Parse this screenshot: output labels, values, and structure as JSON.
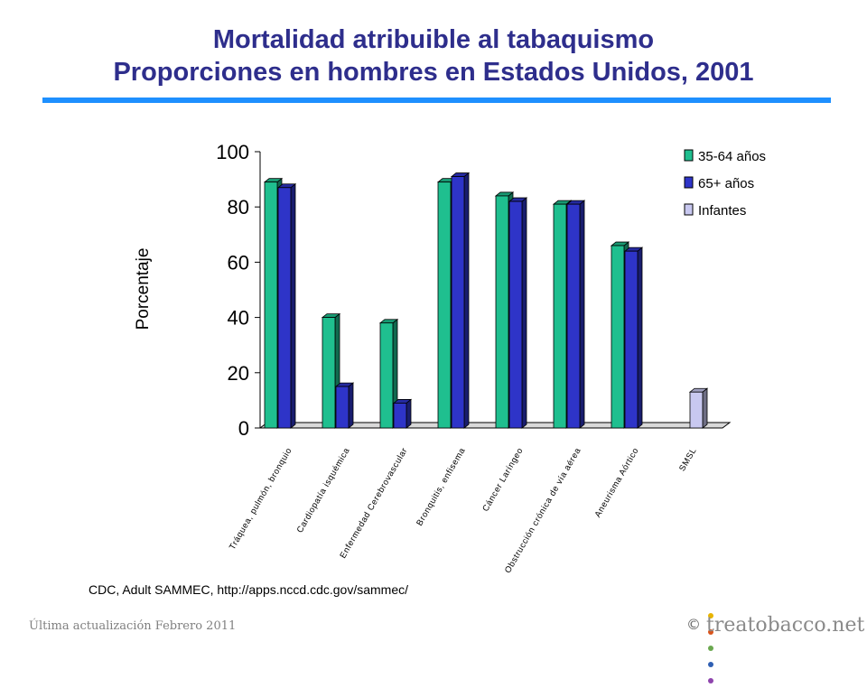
{
  "title": {
    "line1": "Mortalidad atribuible al tabaquismo",
    "line2": "Proporciones en hombres en Estados Unidos, 2001"
  },
  "source": "CDC, Adult SAMMEC, http://apps.nccd.cdc.gov/sammec/",
  "footer": {
    "updated": "Última actualización Febrero 2011",
    "copyright_symbol": "©",
    "brand": "treatobacco.net",
    "brand_dot_colors": [
      "#e8b400",
      "#d9541c",
      "#6aa84f",
      "#2f5fb3",
      "#8e44ad"
    ]
  },
  "colors": {
    "title": "#2e2e8c",
    "rule": "#1e90ff",
    "series_35_64": "#1fbf8f",
    "series_65": "#2e34c8",
    "series_infantes": "#c8c8f0"
  },
  "chart_data": {
    "type": "bar",
    "style": "3d-clustered",
    "ylabel": "Porcentaje",
    "ylim": [
      0,
      100
    ],
    "yticks": [
      0,
      20,
      40,
      60,
      80,
      100
    ],
    "legend_position": "top-right",
    "categories": [
      "Tráquea, pulmón, bronquio",
      "Cardiopatía isquémica",
      "Enfermedad Cerebrovascular",
      "Bronquitis, enfisema",
      "Cáncer Laríngeo",
      "Obstrucción crónica de vía aérea",
      "Aneurisma Aórtico",
      "SMSL"
    ],
    "series": [
      {
        "name": "35-64 años",
        "color": "#1fbf8f",
        "values": [
          89,
          40,
          38,
          89,
          84,
          81,
          66,
          null
        ]
      },
      {
        "name": "65+ años",
        "color": "#2e34c8",
        "values": [
          87,
          15,
          9,
          91,
          82,
          81,
          64,
          null
        ]
      },
      {
        "name": "Infantes",
        "color": "#c8c8f0",
        "values": [
          null,
          null,
          null,
          null,
          null,
          null,
          null,
          13
        ]
      }
    ]
  }
}
